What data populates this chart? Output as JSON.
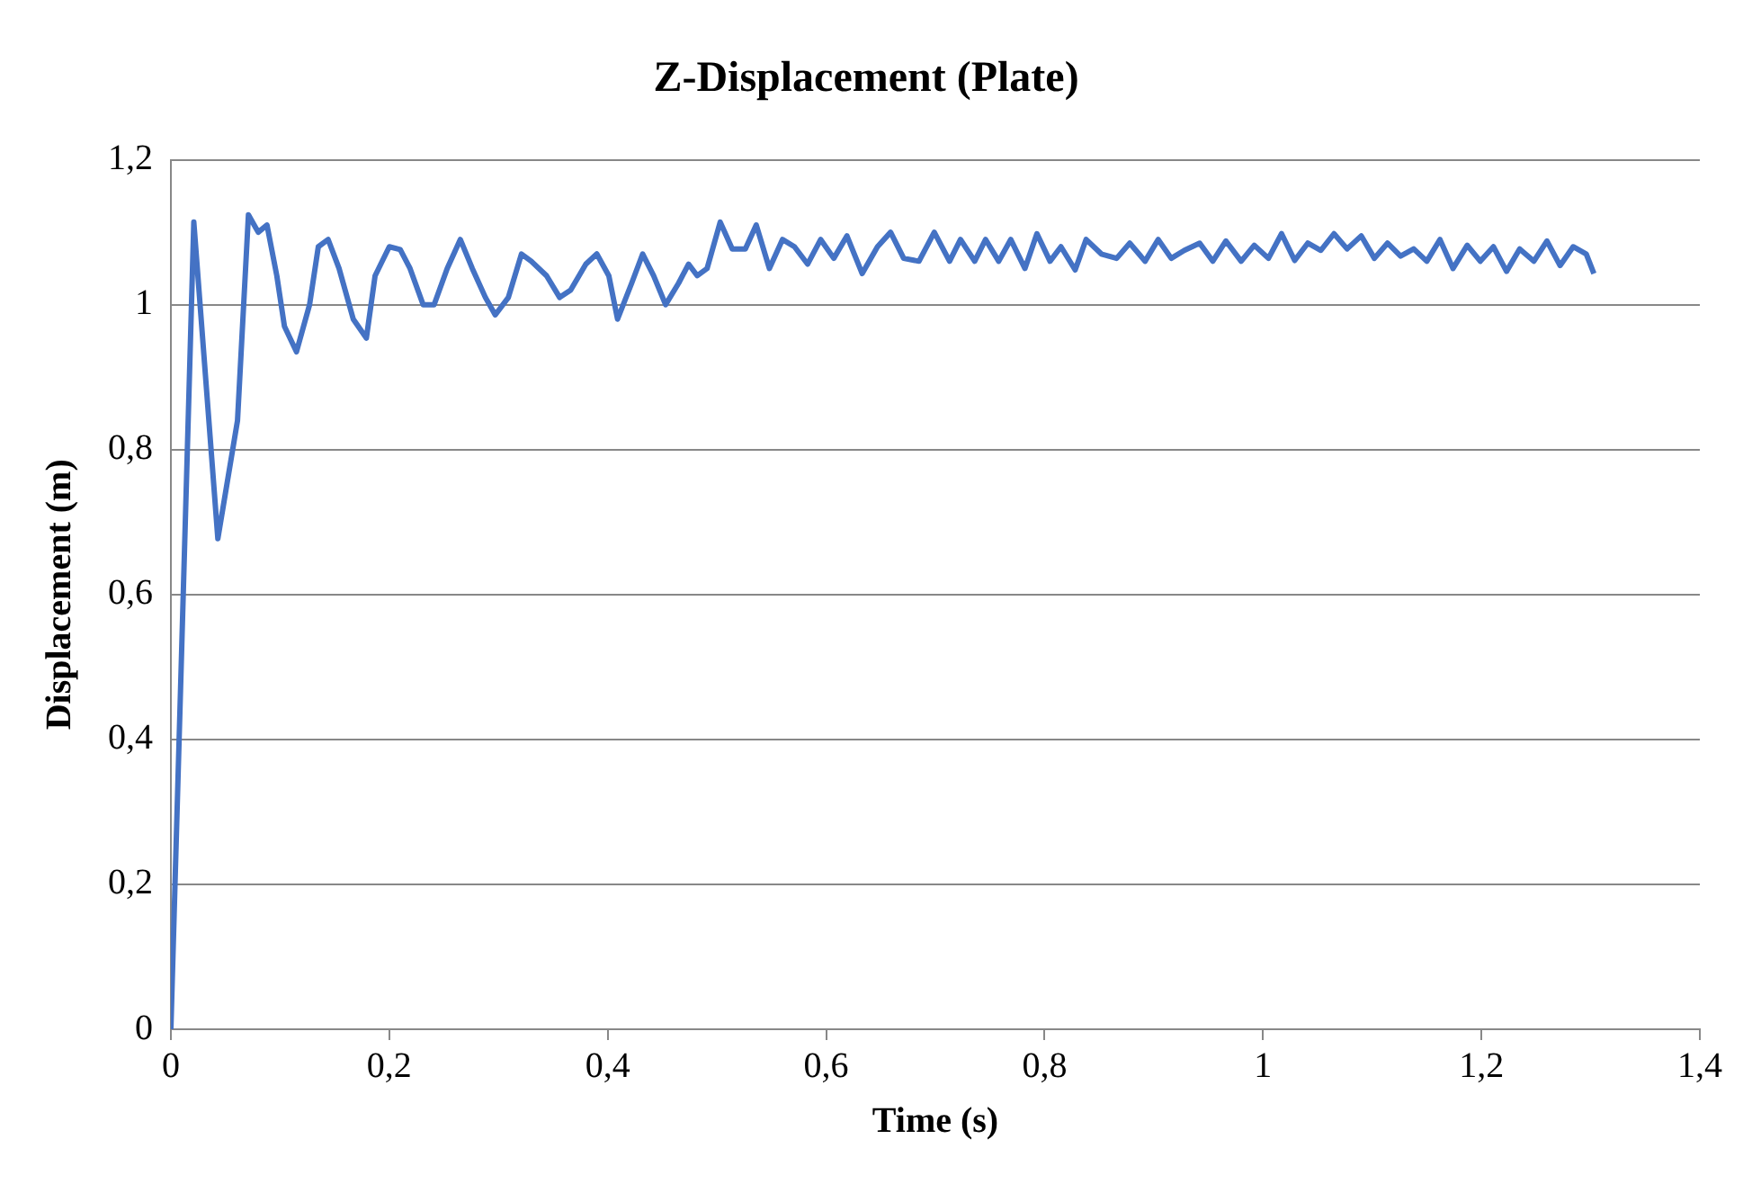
{
  "chart_data": {
    "type": "line",
    "title": "Z-Displacement (Plate)",
    "xlabel": "Time (s)",
    "ylabel": "Displacement (m)",
    "xlim": [
      0,
      1.4
    ],
    "xticks": [
      0,
      {
        "value": 0.2,
        "label": "0,2"
      },
      {
        "value": 0.4,
        "label": "0,4"
      },
      {
        "value": 0.6,
        "label": "0,6"
      },
      {
        "value": 0.8,
        "label": "0,8"
      },
      1,
      {
        "value": 1.2,
        "label": "1,2"
      },
      {
        "value": 1.4,
        "label": "1,4"
      }
    ],
    "ylim": [
      0,
      1.2
    ],
    "yticks": [
      0,
      {
        "value": 0.2,
        "label": "0,2"
      },
      {
        "value": 0.4,
        "label": "0,4"
      },
      {
        "value": 0.6,
        "label": "0,6"
      },
      {
        "value": 0.8,
        "label": "0,8"
      },
      1,
      {
        "value": 1.2,
        "label": "1,2"
      }
    ],
    "grid": "y",
    "legend": false,
    "marker": "none",
    "line_style": "solid",
    "series": [
      {
        "color": "#4472c4",
        "x": [
          0,
          0.021,
          0.043,
          0.061,
          0.071,
          0.08,
          0.088,
          0.097,
          0.104,
          0.115,
          0.127,
          0.135,
          0.144,
          0.154,
          0.167,
          0.179,
          0.187,
          0.2,
          0.21,
          0.219,
          0.231,
          0.241,
          0.253,
          0.265,
          0.276,
          0.288,
          0.297,
          0.309,
          0.321,
          0.33,
          0.344,
          0.356,
          0.366,
          0.38,
          0.39,
          0.401,
          0.409,
          0.422,
          0.432,
          0.442,
          0.453,
          0.465,
          0.474,
          0.482,
          0.491,
          0.503,
          0.514,
          0.526,
          0.536,
          0.548,
          0.56,
          0.571,
          0.583,
          0.595,
          0.607,
          0.619,
          0.633,
          0.647,
          0.659,
          0.671,
          0.685,
          0.699,
          0.713,
          0.723,
          0.736,
          0.746,
          0.758,
          0.769,
          0.782,
          0.793,
          0.805,
          0.815,
          0.828,
          0.838,
          0.852,
          0.866,
          0.878,
          0.892,
          0.904,
          0.916,
          0.928,
          0.942,
          0.954,
          0.966,
          0.98,
          0.992,
          1.005,
          1.017,
          1.029,
          1.041,
          1.053,
          1.065,
          1.077,
          1.09,
          1.102,
          1.114,
          1.126,
          1.138,
          1.15,
          1.162,
          1.174,
          1.187,
          1.199,
          1.211,
          1.223,
          1.235,
          1.248,
          1.26,
          1.272,
          1.284,
          1.296,
          1.303
        ],
        "values": [
          0,
          1.114,
          0.677,
          0.84,
          1.124,
          1.1,
          1.11,
          1.04,
          0.97,
          0.935,
          1.0,
          1.08,
          1.09,
          1.05,
          0.98,
          0.954,
          1.04,
          1.08,
          1.076,
          1.05,
          1.0,
          1.0,
          1.05,
          1.09,
          1.05,
          1.01,
          0.986,
          1.01,
          1.07,
          1.06,
          1.04,
          1.01,
          1.02,
          1.056,
          1.07,
          1.04,
          0.98,
          1.03,
          1.07,
          1.04,
          1.0,
          1.03,
          1.056,
          1.04,
          1.05,
          1.114,
          1.077,
          1.077,
          1.11,
          1.05,
          1.09,
          1.08,
          1.056,
          1.09,
          1.064,
          1.095,
          1.043,
          1.08,
          1.1,
          1.064,
          1.06,
          1.1,
          1.06,
          1.09,
          1.06,
          1.09,
          1.06,
          1.09,
          1.05,
          1.098,
          1.06,
          1.08,
          1.048,
          1.09,
          1.07,
          1.064,
          1.085,
          1.06,
          1.09,
          1.064,
          1.075,
          1.085,
          1.06,
          1.088,
          1.06,
          1.082,
          1.064,
          1.098,
          1.061,
          1.085,
          1.075,
          1.098,
          1.077,
          1.095,
          1.064,
          1.085,
          1.067,
          1.077,
          1.06,
          1.09,
          1.05,
          1.082,
          1.06,
          1.08,
          1.046,
          1.077,
          1.06,
          1.088,
          1.054,
          1.08,
          1.07,
          1.043
        ]
      }
    ]
  }
}
